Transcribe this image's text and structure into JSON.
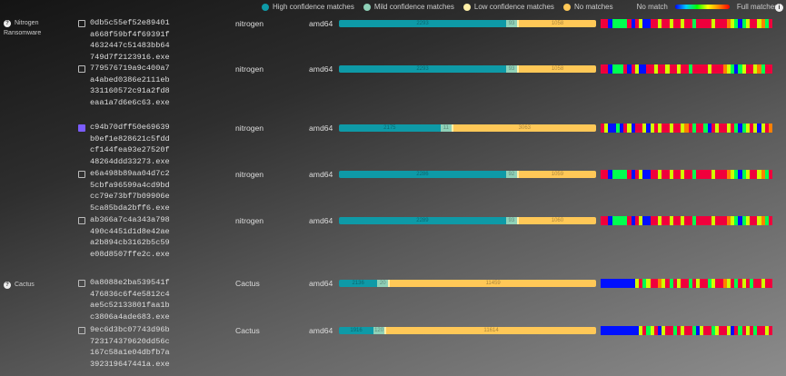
{
  "legend": {
    "items": [
      {
        "label": "High confidence matches",
        "color": "#0e9aa7"
      },
      {
        "label": "Mild confidence matches",
        "color": "#8fd1b8"
      },
      {
        "label": "Low confidence matches",
        "color": "#fff0a8"
      },
      {
        "label": "No matches",
        "color": "#ffc857"
      }
    ],
    "no_match": "No match",
    "full_matches": "Full matches",
    "info": "i"
  },
  "groups": [
    {
      "label": "Nitrogen Ransomware",
      "icon": "?"
    },
    {
      "label": "Cactus",
      "icon": "?"
    }
  ],
  "rows": [
    {
      "hash": "0db5c55ef52e89401a668f59bf4f69391f4632447c51483bb64749d7f2123916.exe",
      "family": "nitrogen",
      "arch": "amd64",
      "checked": false,
      "high": 2293,
      "mild": 93,
      "low": 20,
      "none": 1058,
      "heat": "RRBGGGGRBRYBBRRYRRYRRYRRGRRRRYRRROYGBGYRRYOGR"
    },
    {
      "hash": "779576719a9c400a7a4abed0386e2111eb331160572c91a2fd8eaa1a7d6e6c63.exe",
      "family": "nitrogen",
      "arch": "amd64",
      "checked": false,
      "high": 2293,
      "mild": 93,
      "low": 20,
      "none": 1058,
      "heat": "RRBGGGRBRYBBRRYRRYRRYRRGRRRRYRRROYGBGYRRYOGRR"
    },
    {
      "hash": "c94b70dff50e69639b0ef1e828621c5fddcf144fea93e27520f48264ddd33273.exe",
      "family": "nitrogen",
      "arch": "amd64",
      "checked": true,
      "high": 2175,
      "mild": 11,
      "low": 15,
      "none": 3063,
      "heat": "RYBBGBRYBRRYBYRYRRYRRYORGRRGBRYRRYRGBGYRYBYRO"
    },
    {
      "hash": "e6a498b89aa04d7c25cbfa96599a4cd9bdcc79e73bf7b09906e5ca85bda2bff6.exe",
      "family": "nitrogen",
      "arch": "amd64",
      "checked": false,
      "high": 2286,
      "mild": 92,
      "low": 20,
      "none": 1059,
      "heat": "RRBGGGGRBRYBBRRYRRYRRYRRGRRRRYRRROYGBGYRRYOGR"
    },
    {
      "hash": "ab366a7c4a343a798490c4451d1d8e42aea2b894cb3162b5c59e08d8507ffe2c.exe",
      "family": "nitrogen",
      "arch": "amd64",
      "checked": false,
      "high": 2289,
      "mild": 93,
      "low": 20,
      "none": 1060,
      "heat": "RRBGGGGRBRYBBRRYRRYRRYRRGRRRRYRRROYGBGYRRYOGR"
    },
    {
      "hash": "0a8088e2ba539541f476836c6f4e5812c4ae5c52133801faa1bc3806a4ade683.exe",
      "family": "Cactus",
      "arch": "amd64",
      "checked": false,
      "high": 2136,
      "mild": 20,
      "low": 40,
      "none": 11459,
      "heat": "BBBBBBBBBYRGYRROYRGRYRRGRYRRGYRROYRGRYRGRRYRR"
    },
    {
      "hash": "9ec6d3bc07743d96b723174379620dd56c167c58a1e04dbfb7a392319647441a.exe",
      "family": "Cactus",
      "arch": "amd64",
      "checked": false,
      "high": 1916,
      "mild": 120,
      "low": 60,
      "none": 11614,
      "heat": "BBBBBBBBBBYRGYRBYRRGRYRRGBYRRGYRRYBRGRYRGRRYR"
    }
  ]
}
